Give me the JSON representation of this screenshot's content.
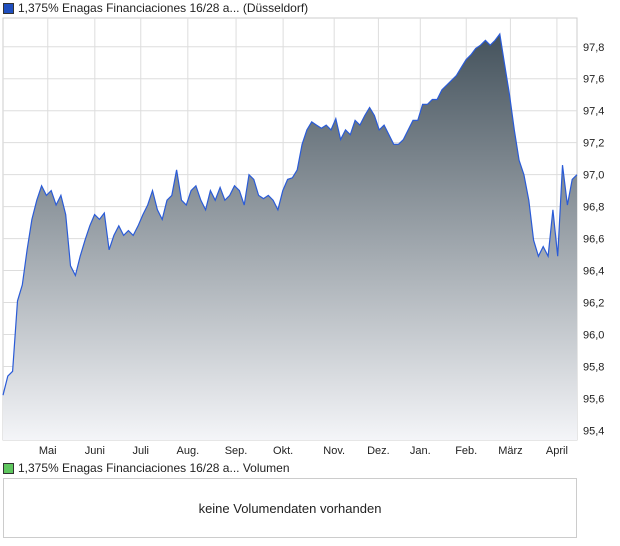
{
  "legend_price": "1,375% Enagas Financiaciones 16/28 a... (Düsseldorf)",
  "legend_volume": "1,375% Enagas Financiaciones 16/28 a... Volumen",
  "volume_message": "keine Volumendaten vorhanden",
  "colors": {
    "line": "#2a5bd7",
    "fill_top": "#44525c",
    "fill_bottom": "#f4f5f8",
    "price_swatch": "#1f4fbf",
    "volume_swatch": "#5ec65e",
    "grid": "#dddddd"
  },
  "chart_data": {
    "type": "area",
    "ylim": [
      95.34,
      97.98
    ],
    "y_ticks": [
      "95,4",
      "95,6",
      "95,8",
      "96,0",
      "96,2",
      "96,4",
      "96,6",
      "96,8",
      "97,0",
      "97,2",
      "97,4",
      "97,6",
      "97,8"
    ],
    "y_tick_values": [
      95.4,
      95.6,
      95.8,
      96.0,
      96.2,
      96.4,
      96.6,
      96.8,
      97.0,
      97.2,
      97.4,
      97.6,
      97.8
    ],
    "x_ticks": [
      "Mai",
      "Juni",
      "Juli",
      "Aug.",
      "Sep.",
      "Okt.",
      "Nov.",
      "Dez.",
      "Jan.",
      "Feb.",
      "März",
      "April"
    ],
    "x_tick_positions": [
      0.078,
      0.16,
      0.24,
      0.322,
      0.406,
      0.488,
      0.577,
      0.654,
      0.727,
      0.807,
      0.884,
      0.965
    ],
    "values": [
      95.62,
      95.74,
      95.77,
      96.21,
      96.31,
      96.53,
      96.72,
      96.84,
      96.93,
      96.87,
      96.9,
      96.81,
      96.87,
      96.75,
      96.43,
      96.37,
      96.49,
      96.59,
      96.68,
      96.75,
      96.72,
      96.76,
      96.53,
      96.62,
      96.68,
      96.62,
      96.65,
      96.62,
      96.68,
      96.75,
      96.81,
      96.9,
      96.78,
      96.72,
      96.84,
      96.87,
      97.03,
      96.84,
      96.81,
      96.9,
      96.93,
      96.84,
      96.78,
      96.9,
      96.84,
      96.92,
      96.84,
      96.87,
      96.93,
      96.9,
      96.81,
      97.0,
      96.97,
      96.87,
      96.85,
      96.87,
      96.84,
      96.78,
      96.9,
      96.97,
      96.98,
      97.03,
      97.19,
      97.28,
      97.33,
      97.31,
      97.29,
      97.31,
      97.28,
      97.35,
      97.22,
      97.28,
      97.25,
      97.34,
      97.31,
      97.37,
      97.42,
      97.37,
      97.28,
      97.31,
      97.25,
      97.19,
      97.19,
      97.22,
      97.28,
      97.34,
      97.34,
      97.44,
      97.44,
      97.47,
      97.47,
      97.53,
      97.56,
      97.59,
      97.62,
      97.67,
      97.72,
      97.75,
      97.79,
      97.81,
      97.84,
      97.81,
      97.84,
      97.88,
      97.69,
      97.5,
      97.28,
      97.09,
      97.0,
      96.84,
      96.59,
      96.49,
      96.55,
      96.49,
      96.78,
      96.49,
      97.06,
      96.81,
      96.97,
      97.0
    ]
  }
}
